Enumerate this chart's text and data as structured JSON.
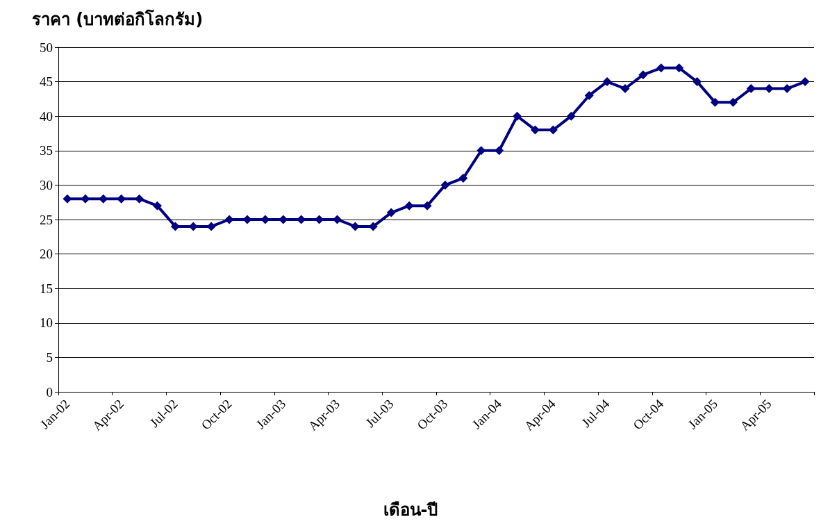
{
  "chart_data": {
    "type": "line",
    "ylabel": "ราคา (บาทต่อกิโลกรัม)",
    "xlabel": "เดือน-ปี",
    "categories": [
      "Jan-02",
      null,
      null,
      "Apr-02",
      null,
      null,
      "Jul-02",
      null,
      null,
      "Oct-02",
      null,
      null,
      "Jan-03",
      null,
      null,
      "Apr-03",
      null,
      null,
      "Jul-03",
      null,
      null,
      "Oct-03",
      null,
      null,
      "Jan-04",
      null,
      null,
      "Apr-04",
      null,
      null,
      "Jul-04",
      null,
      null,
      "Oct-04",
      null,
      null,
      "Jan-05",
      null,
      null,
      "Apr-05",
      null,
      null
    ],
    "series": [
      {
        "color": "#000080",
        "values": [
          28,
          28,
          28,
          28,
          28,
          27,
          24,
          24,
          24,
          25,
          25,
          25,
          25,
          25,
          25,
          25,
          24,
          24,
          26,
          27,
          27,
          30,
          31,
          35,
          35,
          40,
          38,
          38,
          40,
          43,
          45,
          44,
          46,
          47,
          47,
          45,
          42,
          42,
          44,
          44,
          44,
          45
        ]
      }
    ],
    "ylim": [
      0,
      50
    ],
    "yticks": [
      0,
      5,
      10,
      15,
      20,
      25,
      30,
      35,
      40,
      45,
      50
    ],
    "grid": "y",
    "marker": "diamond",
    "line_style": "solid"
  }
}
